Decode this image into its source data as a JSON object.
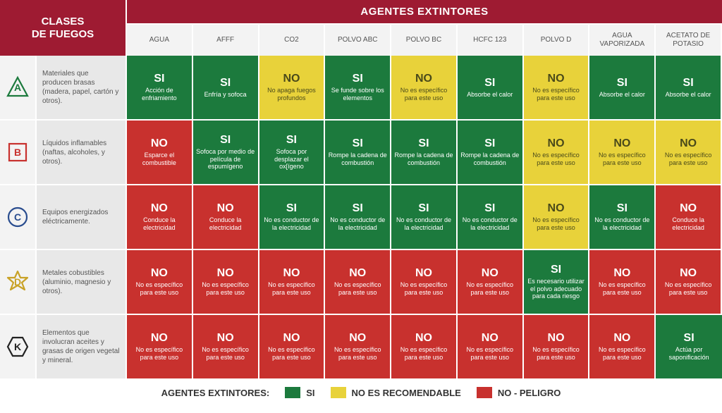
{
  "colors": {
    "header_bg": "#9e1b32",
    "row_head_bg": "#f3f3f3",
    "row_desc_bg": "#e8e8e8",
    "si": "#1c7a3d",
    "no_rec": "#e8d23a",
    "no": "#c8312e",
    "icon_a": "#1c7a3d",
    "icon_b": "#c8312e",
    "icon_c": "#2a4d8f",
    "icon_d": "#c9a227",
    "icon_k": "#222222"
  },
  "header": {
    "corner_line1": "CLASES",
    "corner_line2": "DE FUEGOS",
    "banner": "AGENTES EXTINTORES"
  },
  "agents": [
    "AGUA",
    "AFFF",
    "CO2",
    "POLVO ABC",
    "POLVO BC",
    "HCFC 123",
    "POLVO D",
    "AGUA VAPORIZADA",
    "ACETATO DE POTASIO"
  ],
  "rows": [
    {
      "letter": "A",
      "shape": "triangle",
      "icon_color": "icon_a",
      "desc": "Materiales que producen brasas (madera, papel, cartón y otros).",
      "cells": [
        {
          "status": "si",
          "verdict": "SI",
          "detail": "Acción de enfriamiento"
        },
        {
          "status": "si",
          "verdict": "SI",
          "detail": "Enfría y sofoca"
        },
        {
          "status": "no_rec",
          "verdict": "NO",
          "detail": "No apaga fuegos profundos"
        },
        {
          "status": "si",
          "verdict": "SI",
          "detail": "Se funde sobre los elementos"
        },
        {
          "status": "no_rec",
          "verdict": "NO",
          "detail": "No es específico para este uso"
        },
        {
          "status": "si",
          "verdict": "SI",
          "detail": "Absorbe el calor"
        },
        {
          "status": "no_rec",
          "verdict": "NO",
          "detail": "No es específico para este uso"
        },
        {
          "status": "si",
          "verdict": "SI",
          "detail": "Absorbe el calor"
        },
        {
          "status": "si",
          "verdict": "SI",
          "detail": "Absorbe el calor"
        }
      ]
    },
    {
      "letter": "B",
      "shape": "square",
      "icon_color": "icon_b",
      "desc": "Líquidos inflamables (naftas, alcoholes, y otros).",
      "cells": [
        {
          "status": "no",
          "verdict": "NO",
          "detail": "Esparce el combustible"
        },
        {
          "status": "si",
          "verdict": "SI",
          "detail": "Sofoca por medio de película de espumígeno"
        },
        {
          "status": "si",
          "verdict": "SI",
          "detail": "Sofoca por desplazar el ox[ígeno"
        },
        {
          "status": "si",
          "verdict": "SI",
          "detail": "Rompe la cadena de combustión"
        },
        {
          "status": "si",
          "verdict": "SI",
          "detail": "Rompe la cadena de combustión"
        },
        {
          "status": "si",
          "verdict": "SI",
          "detail": "Rompe la cadena de combustión"
        },
        {
          "status": "no_rec",
          "verdict": "NO",
          "detail": "No es específico para este uso"
        },
        {
          "status": "no_rec",
          "verdict": "NO",
          "detail": "No es específico para este uso"
        },
        {
          "status": "no_rec",
          "verdict": "NO",
          "detail": "No es específico para este uso"
        }
      ]
    },
    {
      "letter": "C",
      "shape": "circle",
      "icon_color": "icon_c",
      "desc": "Equipos energizados eléctricamente.",
      "cells": [
        {
          "status": "no",
          "verdict": "NO",
          "detail": "Conduce la electricidad"
        },
        {
          "status": "no",
          "verdict": "NO",
          "detail": "Conduce la electricidad"
        },
        {
          "status": "si",
          "verdict": "SI",
          "detail": "No es conductor de la electricidad"
        },
        {
          "status": "si",
          "verdict": "SI",
          "detail": "No es conductor de la electricidad"
        },
        {
          "status": "si",
          "verdict": "SI",
          "detail": "No es conductor de la electricidad"
        },
        {
          "status": "si",
          "verdict": "SI",
          "detail": "No es conductor de la electricidad"
        },
        {
          "status": "no_rec",
          "verdict": "NO",
          "detail": "No es específico para este uso"
        },
        {
          "status": "si",
          "verdict": "SI",
          "detail": "No es conductor de la electricidad"
        },
        {
          "status": "no",
          "verdict": "NO",
          "detail": "Conduce la electricidad"
        }
      ]
    },
    {
      "letter": "D",
      "shape": "star",
      "icon_color": "icon_d",
      "desc": "Metales cobustibles (aluminio, magnesio y otros).",
      "cells": [
        {
          "status": "no",
          "verdict": "NO",
          "detail": "No es específico para este uso"
        },
        {
          "status": "no",
          "verdict": "NO",
          "detail": "No es específico para este uso"
        },
        {
          "status": "no",
          "verdict": "NO",
          "detail": "No es específico para este uso"
        },
        {
          "status": "no",
          "verdict": "NO",
          "detail": "No es específico para este uso"
        },
        {
          "status": "no",
          "verdict": "NO",
          "detail": "No es específico para este uso"
        },
        {
          "status": "no",
          "verdict": "NO",
          "detail": "No es específico para este uso"
        },
        {
          "status": "si",
          "verdict": "SI",
          "detail": "Es necesario utilizar el polvo adecuado para cada riesgo"
        },
        {
          "status": "no",
          "verdict": "NO",
          "detail": "No es específico para este uso"
        },
        {
          "status": "no",
          "verdict": "NO",
          "detail": "No es específico para este uso"
        }
      ]
    },
    {
      "letter": "K",
      "shape": "hex",
      "icon_color": "icon_k",
      "desc": "Elementos que involucran aceites y grasas de origen vegetal y mineral.",
      "cells": [
        {
          "status": "no",
          "verdict": "NO",
          "detail": "No es específico para este uso"
        },
        {
          "status": "no",
          "verdict": "NO",
          "detail": "No es específico para este uso"
        },
        {
          "status": "no",
          "verdict": "NO",
          "detail": "No es específico para este uso"
        },
        {
          "status": "no",
          "verdict": "NO",
          "detail": "No es específico para este uso"
        },
        {
          "status": "no",
          "verdict": "NO",
          "detail": "No es específico para este uso"
        },
        {
          "status": "no",
          "verdict": "NO",
          "detail": "No es específico para este uso"
        },
        {
          "status": "no",
          "verdict": "NO",
          "detail": "No es específico para este uso"
        },
        {
          "status": "no",
          "verdict": "NO",
          "detail": "No es específico para este uso"
        },
        {
          "status": "si",
          "verdict": "SI",
          "detail": "Actúa por saponificación"
        }
      ]
    }
  ],
  "legend": {
    "label": "AGENTES EXTINTORES:",
    "items": [
      {
        "color": "si",
        "text": "SI"
      },
      {
        "color": "no_rec",
        "text": "NO ES RECOMENDABLE"
      },
      {
        "color": "no",
        "text": "NO - PELIGRO"
      }
    ]
  }
}
